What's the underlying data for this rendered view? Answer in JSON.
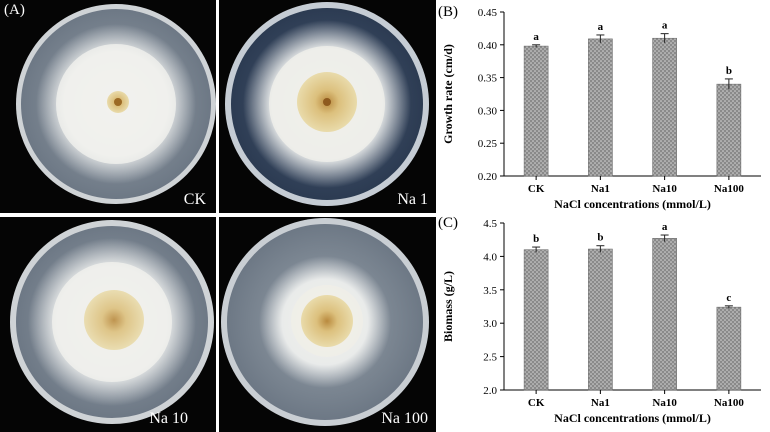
{
  "panel_a": {
    "label": "(A)",
    "plates": [
      {
        "label": "CK"
      },
      {
        "label": "Na 1"
      },
      {
        "label": "Na 10"
      },
      {
        "label": "Na 100"
      }
    ]
  },
  "chart_data": [
    {
      "panel_label": "(B)",
      "type": "bar",
      "categories": [
        "CK",
        "Na1",
        "Na10",
        "Na100"
      ],
      "values": [
        0.398,
        0.409,
        0.41,
        0.34
      ],
      "errors": [
        0.002,
        0.006,
        0.007,
        0.008
      ],
      "letters": [
        "a",
        "a",
        "a",
        "b"
      ],
      "xlabel": "NaCl concentrations (mmol/L)",
      "ylabel": "Growth rate (cm/d)",
      "ylim": [
        0.2,
        0.45
      ],
      "yticks": [
        "0.20",
        "0.25",
        "0.30",
        "0.35",
        "0.40",
        "0.45"
      ],
      "bar_fill": "#8a8a8a",
      "grid": false
    },
    {
      "panel_label": "(C)",
      "type": "bar",
      "categories": [
        "CK",
        "Na1",
        "Na10",
        "Na100"
      ],
      "values": [
        4.1,
        4.11,
        4.27,
        3.24
      ],
      "errors": [
        0.04,
        0.05,
        0.05,
        0.02
      ],
      "letters": [
        "b",
        "b",
        "a",
        "c"
      ],
      "xlabel": "NaCl concentrations (mmol/L)",
      "ylabel": "Biomass (g/L)",
      "ylim": [
        2.0,
        4.5
      ],
      "yticks": [
        "2.0",
        "2.5",
        "3.0",
        "3.5",
        "4.0",
        "4.5"
      ],
      "bar_fill": "#8a8a8a",
      "grid": false
    }
  ]
}
